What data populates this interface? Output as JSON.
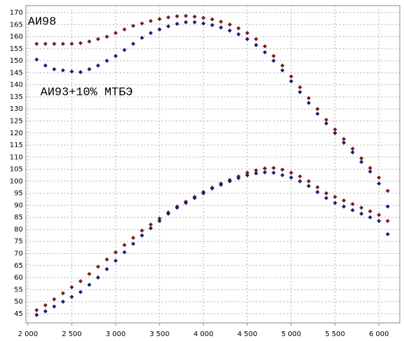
{
  "chart_data": {
    "type": "scatter",
    "annotations": [
      "АИ98",
      "АИ93+10% МТБЭ"
    ],
    "x": [
      2100,
      2200,
      2300,
      2400,
      2500,
      2600,
      2700,
      2800,
      2900,
      3000,
      3100,
      3200,
      3300,
      3400,
      3500,
      3600,
      3700,
      3800,
      3900,
      4000,
      4100,
      4200,
      4300,
      4400,
      4500,
      4600,
      4700,
      4800,
      4900,
      5000,
      5100,
      5200,
      5300,
      5400,
      5500,
      5600,
      5700,
      5800,
      5900,
      6000,
      6100
    ],
    "series": [
      {
        "color": "#7a1c1c",
        "values": [
          157,
          157,
          157,
          157,
          157,
          157.3,
          158,
          159,
          160,
          161.5,
          163,
          164.5,
          165.5,
          166.5,
          167.3,
          168,
          168.5,
          168.6,
          168.3,
          167.8,
          167.2,
          166.2,
          165,
          163.5,
          161.5,
          159,
          156,
          152,
          148,
          143.5,
          139,
          134.5,
          130,
          125.5,
          121.5,
          117.5,
          113.5,
          109.5,
          105.5,
          101.5,
          96
        ]
      },
      {
        "color": "#1c1c7a",
        "values": [
          150.5,
          148,
          146.5,
          146,
          145.5,
          145.3,
          146.5,
          148,
          150,
          152,
          154.5,
          157,
          159.5,
          161.5,
          163,
          164.3,
          165.3,
          166,
          166,
          165.5,
          164.8,
          163.8,
          162.5,
          161,
          159,
          156.5,
          153.5,
          150,
          146,
          141.5,
          137,
          132.5,
          128,
          124,
          120,
          116,
          112,
          108,
          104,
          99,
          89.5
        ]
      },
      {
        "color": "#7a1c1c",
        "values": [
          46.5,
          48.5,
          51,
          53.5,
          56,
          58.5,
          61.5,
          64.5,
          67.5,
          70.5,
          73.5,
          76.5,
          79.5,
          82,
          84.5,
          87,
          89.5,
          91.5,
          93.5,
          95.5,
          97.3,
          99,
          100.5,
          102,
          103.5,
          104.5,
          105.3,
          105.5,
          104.8,
          103.5,
          102,
          100,
          97.5,
          95,
          93.5,
          92,
          90.5,
          89,
          87.5,
          86,
          83.5
        ]
      },
      {
        "color": "#1c1c7a",
        "values": [
          44.5,
          46,
          48,
          50,
          52,
          54,
          57,
          60,
          63.5,
          67,
          70.5,
          74,
          77.5,
          80.5,
          83.5,
          86.5,
          89,
          91,
          93,
          95,
          97,
          98.5,
          100,
          101.3,
          102.5,
          103.3,
          103.7,
          103.5,
          102.5,
          101.5,
          100,
          98,
          95.5,
          93,
          91,
          89.5,
          88,
          86.5,
          85,
          83.5,
          78
        ]
      }
    ],
    "xlim": [
      1976,
      6238
    ],
    "ylim": [
      41.2,
      172.9
    ],
    "xticks": [
      {
        "value": 2000,
        "label": "2 000"
      },
      {
        "value": 2500,
        "label": "2 500"
      },
      {
        "value": 3000,
        "label": "3 000"
      },
      {
        "value": 3500,
        "label": "3 500"
      },
      {
        "value": 4000,
        "label": "4 000"
      },
      {
        "value": 4500,
        "label": "4 500"
      },
      {
        "value": 5000,
        "label": "5 000"
      },
      {
        "value": 5500,
        "label": "5 500"
      },
      {
        "value": 6000,
        "label": "6 000"
      }
    ],
    "yticks": [
      45,
      50,
      55,
      60,
      65,
      70,
      75,
      80,
      85,
      90,
      95,
      100,
      105,
      110,
      115,
      120,
      125,
      130,
      135,
      140,
      145,
      150,
      155,
      160,
      165,
      170
    ],
    "grid": true
  }
}
